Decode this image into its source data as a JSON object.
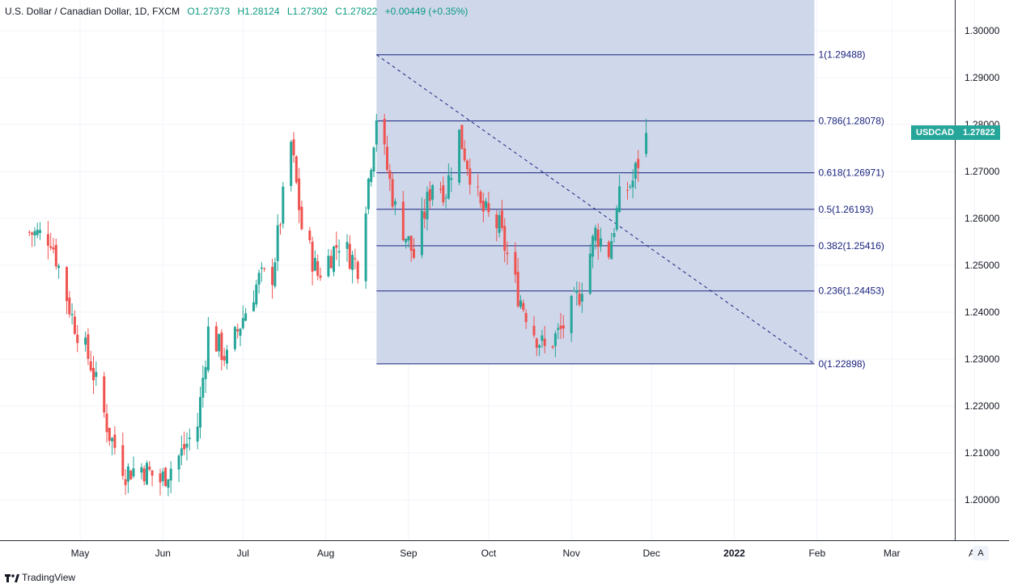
{
  "header": {
    "symbol_name": "U.S. Dollar / Canadian Dollar, 1D, FXCM",
    "open": "O1.27373",
    "high": "H1.28124",
    "low": "L1.27302",
    "close": "C1.27822",
    "change": "+0.00449 (+0.35%)"
  },
  "price_badge": {
    "label": "USDCAD",
    "value": "1.27822"
  },
  "price_axis": {
    "labels": [
      "1.30000",
      "1.29000",
      "1.28000",
      "1.27000",
      "1.26000",
      "1.25000",
      "1.24000",
      "1.23000",
      "1.22000",
      "1.21000",
      "1.20000"
    ]
  },
  "time_axis": {
    "labels": [
      "May",
      "Jun",
      "Jul",
      "Aug",
      "Sep",
      "Oct",
      "Nov",
      "Dec",
      "2022",
      "Feb",
      "Mar",
      "Ap"
    ]
  },
  "fib_levels": [
    {
      "label": "1(1.29488)",
      "value": 1.29488
    },
    {
      "label": "0.786(1.28078)",
      "value": 1.28078
    },
    {
      "label": "0.618(1.26971)",
      "value": 1.26971
    },
    {
      "label": "0.5(1.26193)",
      "value": 1.26193
    },
    {
      "label": "0.382(1.25416)",
      "value": 1.25416
    },
    {
      "label": "0.236(1.24453)",
      "value": 1.24453
    },
    {
      "label": "0(1.22898)",
      "value": 1.22898
    }
  ],
  "auto_button": "A",
  "brand": "TradingView",
  "colors": {
    "up": "#26a69a",
    "down": "#ef5350",
    "fib_fill": "#ccd5ea",
    "fib_line": "#1a237e",
    "grid": "#f0f3fa"
  },
  "chart_data": {
    "type": "candlestick",
    "title": "U.S. Dollar / Canadian Dollar, 1D, FXCM",
    "ylim": [
      1.194,
      1.306
    ],
    "x_ticks": [
      "May",
      "Jun",
      "Jul",
      "Aug",
      "Sep",
      "Oct",
      "Nov",
      "Dec",
      "2022",
      "Feb",
      "Mar",
      "Ap"
    ],
    "anchors": [
      {
        "date": "2021-04-12",
        "close": 1.257
      },
      {
        "date": "2021-04-20",
        "close": 1.256
      },
      {
        "date": "2021-04-28",
        "close": 1.239
      },
      {
        "date": "2021-05-05",
        "close": 1.229
      },
      {
        "date": "2021-05-12",
        "close": 1.214
      },
      {
        "date": "2021-05-18",
        "close": 1.206
      },
      {
        "date": "2021-05-24",
        "close": 1.207
      },
      {
        "date": "2021-05-31",
        "close": 1.204
      },
      {
        "date": "2021-06-08",
        "close": 1.21
      },
      {
        "date": "2021-06-14",
        "close": 1.216
      },
      {
        "date": "2021-06-18",
        "close": 1.236
      },
      {
        "date": "2021-06-25",
        "close": 1.23
      },
      {
        "date": "2021-07-01",
        "close": 1.239
      },
      {
        "date": "2021-07-07",
        "close": 1.247
      },
      {
        "date": "2021-07-12",
        "close": 1.248
      },
      {
        "date": "2021-07-19",
        "close": 1.276
      },
      {
        "date": "2021-07-23",
        "close": 1.258
      },
      {
        "date": "2021-07-29",
        "close": 1.248
      },
      {
        "date": "2021-08-06",
        "close": 1.255
      },
      {
        "date": "2021-08-13",
        "close": 1.25
      },
      {
        "date": "2021-08-20",
        "close": 1.282
      },
      {
        "date": "2021-08-27",
        "close": 1.262
      },
      {
        "date": "2021-09-03",
        "close": 1.252
      },
      {
        "date": "2021-09-10",
        "close": 1.268
      },
      {
        "date": "2021-09-15",
        "close": 1.266
      },
      {
        "date": "2021-09-20",
        "close": 1.278
      },
      {
        "date": "2021-09-28",
        "close": 1.262
      },
      {
        "date": "2021-10-05",
        "close": 1.258
      },
      {
        "date": "2021-10-12",
        "close": 1.244
      },
      {
        "date": "2021-10-18",
        "close": 1.236
      },
      {
        "date": "2021-10-22",
        "close": 1.232
      },
      {
        "date": "2021-10-28",
        "close": 1.236
      },
      {
        "date": "2021-11-04",
        "close": 1.244
      },
      {
        "date": "2021-11-10",
        "close": 1.257
      },
      {
        "date": "2021-11-15",
        "close": 1.253
      },
      {
        "date": "2021-11-19",
        "close": 1.264
      },
      {
        "date": "2021-11-24",
        "close": 1.268
      },
      {
        "date": "2021-11-29",
        "close": 1.2782
      }
    ],
    "fibonacci": {
      "from": {
        "date": "2021-08-20",
        "price": 1.29488
      },
      "to": {
        "date": "2022-01-31",
        "price": 1.22898
      },
      "levels": [
        1,
        0.786,
        0.618,
        0.5,
        0.382,
        0.236,
        0
      ]
    }
  }
}
